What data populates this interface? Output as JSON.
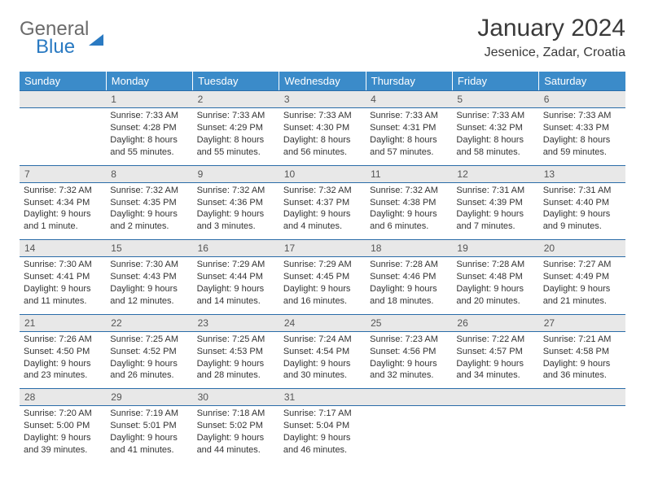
{
  "logo": {
    "general": "General",
    "blue": "Blue"
  },
  "title": {
    "month": "January 2024",
    "location": "Jesenice, Zadar, Croatia"
  },
  "dayHeaders": [
    "Sunday",
    "Monday",
    "Tuesday",
    "Wednesday",
    "Thursday",
    "Friday",
    "Saturday"
  ],
  "styling": {
    "header_bg": "#3b8bc9",
    "header_text": "#ffffff",
    "daynum_bg": "#e8e8e8",
    "daynum_border": "#2a6ca8",
    "body_bg": "#ffffff",
    "text_color": "#333333",
    "logo_gray": "#6b6b6b",
    "logo_blue": "#2a7ac2",
    "title_fontsize": 30,
    "header_fontsize": 13,
    "cell_fontsize": 11
  },
  "weeks": [
    [
      {
        "num": "",
        "lines": []
      },
      {
        "num": "1",
        "lines": [
          "Sunrise: 7:33 AM",
          "Sunset: 4:28 PM",
          "Daylight: 8 hours",
          "and 55 minutes."
        ]
      },
      {
        "num": "2",
        "lines": [
          "Sunrise: 7:33 AM",
          "Sunset: 4:29 PM",
          "Daylight: 8 hours",
          "and 55 minutes."
        ]
      },
      {
        "num": "3",
        "lines": [
          "Sunrise: 7:33 AM",
          "Sunset: 4:30 PM",
          "Daylight: 8 hours",
          "and 56 minutes."
        ]
      },
      {
        "num": "4",
        "lines": [
          "Sunrise: 7:33 AM",
          "Sunset: 4:31 PM",
          "Daylight: 8 hours",
          "and 57 minutes."
        ]
      },
      {
        "num": "5",
        "lines": [
          "Sunrise: 7:33 AM",
          "Sunset: 4:32 PM",
          "Daylight: 8 hours",
          "and 58 minutes."
        ]
      },
      {
        "num": "6",
        "lines": [
          "Sunrise: 7:33 AM",
          "Sunset: 4:33 PM",
          "Daylight: 8 hours",
          "and 59 minutes."
        ]
      }
    ],
    [
      {
        "num": "7",
        "lines": [
          "Sunrise: 7:32 AM",
          "Sunset: 4:34 PM",
          "Daylight: 9 hours",
          "and 1 minute."
        ]
      },
      {
        "num": "8",
        "lines": [
          "Sunrise: 7:32 AM",
          "Sunset: 4:35 PM",
          "Daylight: 9 hours",
          "and 2 minutes."
        ]
      },
      {
        "num": "9",
        "lines": [
          "Sunrise: 7:32 AM",
          "Sunset: 4:36 PM",
          "Daylight: 9 hours",
          "and 3 minutes."
        ]
      },
      {
        "num": "10",
        "lines": [
          "Sunrise: 7:32 AM",
          "Sunset: 4:37 PM",
          "Daylight: 9 hours",
          "and 4 minutes."
        ]
      },
      {
        "num": "11",
        "lines": [
          "Sunrise: 7:32 AM",
          "Sunset: 4:38 PM",
          "Daylight: 9 hours",
          "and 6 minutes."
        ]
      },
      {
        "num": "12",
        "lines": [
          "Sunrise: 7:31 AM",
          "Sunset: 4:39 PM",
          "Daylight: 9 hours",
          "and 7 minutes."
        ]
      },
      {
        "num": "13",
        "lines": [
          "Sunrise: 7:31 AM",
          "Sunset: 4:40 PM",
          "Daylight: 9 hours",
          "and 9 minutes."
        ]
      }
    ],
    [
      {
        "num": "14",
        "lines": [
          "Sunrise: 7:30 AM",
          "Sunset: 4:41 PM",
          "Daylight: 9 hours",
          "and 11 minutes."
        ]
      },
      {
        "num": "15",
        "lines": [
          "Sunrise: 7:30 AM",
          "Sunset: 4:43 PM",
          "Daylight: 9 hours",
          "and 12 minutes."
        ]
      },
      {
        "num": "16",
        "lines": [
          "Sunrise: 7:29 AM",
          "Sunset: 4:44 PM",
          "Daylight: 9 hours",
          "and 14 minutes."
        ]
      },
      {
        "num": "17",
        "lines": [
          "Sunrise: 7:29 AM",
          "Sunset: 4:45 PM",
          "Daylight: 9 hours",
          "and 16 minutes."
        ]
      },
      {
        "num": "18",
        "lines": [
          "Sunrise: 7:28 AM",
          "Sunset: 4:46 PM",
          "Daylight: 9 hours",
          "and 18 minutes."
        ]
      },
      {
        "num": "19",
        "lines": [
          "Sunrise: 7:28 AM",
          "Sunset: 4:48 PM",
          "Daylight: 9 hours",
          "and 20 minutes."
        ]
      },
      {
        "num": "20",
        "lines": [
          "Sunrise: 7:27 AM",
          "Sunset: 4:49 PM",
          "Daylight: 9 hours",
          "and 21 minutes."
        ]
      }
    ],
    [
      {
        "num": "21",
        "lines": [
          "Sunrise: 7:26 AM",
          "Sunset: 4:50 PM",
          "Daylight: 9 hours",
          "and 23 minutes."
        ]
      },
      {
        "num": "22",
        "lines": [
          "Sunrise: 7:25 AM",
          "Sunset: 4:52 PM",
          "Daylight: 9 hours",
          "and 26 minutes."
        ]
      },
      {
        "num": "23",
        "lines": [
          "Sunrise: 7:25 AM",
          "Sunset: 4:53 PM",
          "Daylight: 9 hours",
          "and 28 minutes."
        ]
      },
      {
        "num": "24",
        "lines": [
          "Sunrise: 7:24 AM",
          "Sunset: 4:54 PM",
          "Daylight: 9 hours",
          "and 30 minutes."
        ]
      },
      {
        "num": "25",
        "lines": [
          "Sunrise: 7:23 AM",
          "Sunset: 4:56 PM",
          "Daylight: 9 hours",
          "and 32 minutes."
        ]
      },
      {
        "num": "26",
        "lines": [
          "Sunrise: 7:22 AM",
          "Sunset: 4:57 PM",
          "Daylight: 9 hours",
          "and 34 minutes."
        ]
      },
      {
        "num": "27",
        "lines": [
          "Sunrise: 7:21 AM",
          "Sunset: 4:58 PM",
          "Daylight: 9 hours",
          "and 36 minutes."
        ]
      }
    ],
    [
      {
        "num": "28",
        "lines": [
          "Sunrise: 7:20 AM",
          "Sunset: 5:00 PM",
          "Daylight: 9 hours",
          "and 39 minutes."
        ]
      },
      {
        "num": "29",
        "lines": [
          "Sunrise: 7:19 AM",
          "Sunset: 5:01 PM",
          "Daylight: 9 hours",
          "and 41 minutes."
        ]
      },
      {
        "num": "30",
        "lines": [
          "Sunrise: 7:18 AM",
          "Sunset: 5:02 PM",
          "Daylight: 9 hours",
          "and 44 minutes."
        ]
      },
      {
        "num": "31",
        "lines": [
          "Sunrise: 7:17 AM",
          "Sunset: 5:04 PM",
          "Daylight: 9 hours",
          "and 46 minutes."
        ]
      },
      {
        "num": "",
        "lines": []
      },
      {
        "num": "",
        "lines": []
      },
      {
        "num": "",
        "lines": []
      }
    ]
  ]
}
